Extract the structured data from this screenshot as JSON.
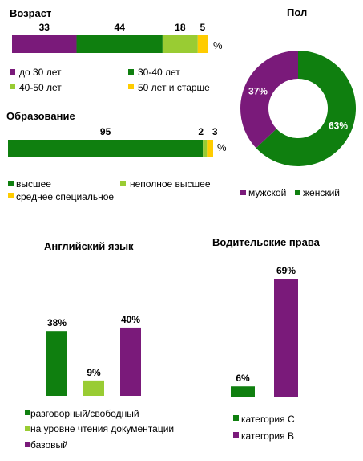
{
  "colors": {
    "purple": "#7a1a7a",
    "green": "#0f7f0f",
    "lightgreen": "#99cc33",
    "yellow": "#ffcc00"
  },
  "chart_data": [
    {
      "id": "age",
      "type": "bar",
      "orientation": "horizontal-stacked",
      "title": "Возраст",
      "unit_label": "%",
      "segments": [
        {
          "name": "до 30 лет",
          "value": 33,
          "color": "#7a1a7a"
        },
        {
          "name": "30-40  лет",
          "value": 44,
          "color": "#0f7f0f"
        },
        {
          "name": "40-50  лет",
          "value": 18,
          "color": "#99cc33"
        },
        {
          "name": "50 лет и старше",
          "value": 5,
          "color": "#ffcc00"
        }
      ],
      "total": 100
    },
    {
      "id": "education",
      "type": "bar",
      "orientation": "horizontal-stacked",
      "title": "Образование",
      "unit_label": "%",
      "segments": [
        {
          "name": "высшее",
          "value": 95,
          "color": "#0f7f0f"
        },
        {
          "name": "неполное высшее",
          "value": 2,
          "color": "#99cc33"
        },
        {
          "name": "среднее специальное",
          "value": 3,
          "color": "#ffcc00"
        }
      ],
      "total": 100
    },
    {
      "id": "gender",
      "type": "pie",
      "variant": "donut",
      "title": "Пол",
      "slices": [
        {
          "name": "мужской",
          "value": 37,
          "label": "37%",
          "color": "#7a1a7a"
        },
        {
          "name": "женский",
          "value": 63,
          "label": "63%",
          "color": "#0f7f0f"
        }
      ]
    },
    {
      "id": "english",
      "type": "bar",
      "title": "Английский язык",
      "ylim": [
        0,
        45
      ],
      "series": [
        {
          "name": "разговорный/свободный",
          "value": 38,
          "label": "38%",
          "color": "#0f7f0f"
        },
        {
          "name": "на уровне чтения документации",
          "value": 9,
          "label": "9%",
          "color": "#99cc33"
        },
        {
          "name": "базовый",
          "value": 40,
          "label": "40%",
          "color": "#7a1a7a"
        }
      ]
    },
    {
      "id": "license",
      "type": "bar",
      "title": "Водительские права",
      "ylim": [
        0,
        75
      ],
      "series": [
        {
          "name": "категория С",
          "value": 6,
          "label": "6%",
          "color": "#0f7f0f"
        },
        {
          "name": "категория В",
          "value": 69,
          "label": "69%",
          "color": "#7a1a7a"
        }
      ]
    }
  ]
}
